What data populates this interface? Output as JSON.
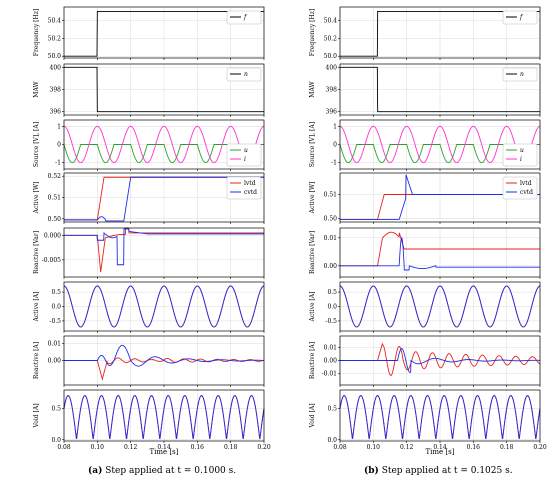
{
  "x_axis": {
    "label": "Time [s]",
    "ticks": [
      "0.08",
      "0.10",
      "0.12",
      "0.14",
      "0.16",
      "0.18",
      "0.20"
    ],
    "range": [
      0.08,
      0.2
    ]
  },
  "columns": [
    {
      "step_time": 0.1,
      "caption_tag": "(a)",
      "caption_text": "Step applied at t = 0.1000 s."
    },
    {
      "step_time": 0.1025,
      "caption_tag": "(b)",
      "caption_text": "Step applied at t = 0.1025 s."
    }
  ],
  "colors": {
    "black": "#000000",
    "green": "#2ca02c",
    "magenta": "#ff33cc",
    "red": "#e8221b",
    "blue": "#1f2ee6",
    "grid": "#d9d9d9"
  },
  "chart_data": [
    {
      "type": "line",
      "panel": "frequency",
      "ylabel": "Frequency [Hz]",
      "yticks": {
        "a": [
          "50.0",
          "50.2",
          "50.4"
        ],
        "b": [
          "50.0",
          "50.2",
          "50.4"
        ]
      },
      "ylim": [
        49.98,
        50.55
      ],
      "legend": "top-right",
      "series": [
        {
          "name": "f",
          "color": "black",
          "description": "step from 50.0 Hz to 50.5 Hz at the step time"
        }
      ]
    },
    {
      "type": "line",
      "panel": "maw",
      "ylabel": "MAW",
      "yticks": {
        "a": [
          "396",
          "398",
          "400"
        ],
        "b": [
          "396",
          "398",
          "400"
        ]
      },
      "ylim": [
        395.7,
        400.3
      ],
      "legend": "top-right",
      "series": [
        {
          "name": "n",
          "color": "black",
          "description": "step from 400 to 396 at the step time"
        }
      ]
    },
    {
      "type": "line",
      "panel": "source",
      "ylabel": "Source [V], [A]",
      "yticks": {
        "a": [
          "-1",
          "0",
          "1"
        ],
        "b": [
          "-1",
          "0",
          "1"
        ]
      },
      "ylim": [
        -1.35,
        1.35
      ],
      "legend": "bottom-right",
      "series": [
        {
          "name": "u",
          "color": "green",
          "description": "half-wave rectified negative sinusoid, amplitude 1, 50 Hz"
        },
        {
          "name": "i",
          "color": "magenta",
          "description": "sinusoid, amplitude 1, 50 Hz"
        }
      ]
    },
    {
      "type": "line",
      "panel": "active_power",
      "ylabel": "Active [W]",
      "yticks": {
        "a": [
          "0.50",
          "0.51",
          "0.52"
        ],
        "b": [
          "0.50",
          "0.51"
        ]
      },
      "ylim": {
        "a": [
          0.4985,
          0.5215
        ],
        "b": [
          0.4985,
          0.519
        ]
      },
      "legend": "top-right",
      "series": [
        {
          "name": "lvtd",
          "color": "red",
          "values_a": {
            "before": 0.4995,
            "after": 0.5195
          },
          "values_b": {
            "before": 0.4995,
            "after": 0.51
          }
        },
        {
          "name": "cvtd",
          "color": "blue",
          "values_a": {
            "before": 0.4995,
            "after": 0.5195
          },
          "values_b": {
            "before": 0.4995,
            "after": 0.51
          }
        }
      ]
    },
    {
      "type": "line",
      "panel": "reactive_power",
      "ylabel": "Reactive [Var]",
      "yticks": {
        "a": [
          "-0.005",
          "0.000"
        ],
        "b": [
          "0.00",
          "0.01"
        ]
      },
      "ylim": {
        "a": [
          -0.0085,
          0.0015
        ],
        "b": [
          -0.004,
          0.0135
        ]
      },
      "series": [
        {
          "name": "lvtd",
          "color": "red"
        },
        {
          "name": "cvtd",
          "color": "blue"
        }
      ]
    },
    {
      "type": "line",
      "panel": "active_current",
      "ylabel": "Active [A]",
      "yticks": {
        "a": [
          "-0.5",
          "0.0",
          "0.5"
        ],
        "b": [
          "-0.5",
          "0.0",
          "0.5"
        ]
      },
      "ylim": [
        -0.85,
        0.85
      ],
      "series": [
        {
          "name": "active current",
          "description": "sinusoid amplitude 0.71, 50 Hz"
        }
      ]
    },
    {
      "type": "line",
      "panel": "reactive_current",
      "ylabel": "Reactive [A]",
      "yticks": {
        "a": [
          "0.00",
          "0.01"
        ],
        "b": [
          "-0.01",
          "0.00",
          "0.01"
        ]
      },
      "ylim": {
        "a": [
          -0.0145,
          0.0145
        ],
        "b": [
          -0.0185,
          0.0185
        ]
      },
      "series": [
        {
          "name": "lvtd",
          "color": "red"
        },
        {
          "name": "cvtd",
          "color": "blue"
        }
      ]
    },
    {
      "type": "line",
      "panel": "void_current",
      "ylabel": "Void [A]",
      "yticks": {
        "a": [
          "0.0",
          "0.5"
        ],
        "b": [
          "0.0",
          "0.5"
        ]
      },
      "ylim": [
        -0.02,
        0.8
      ],
      "series": [
        {
          "name": "void current",
          "description": "|sin| waveform, peak 0.71, 100 Hz ripple"
        }
      ]
    }
  ]
}
